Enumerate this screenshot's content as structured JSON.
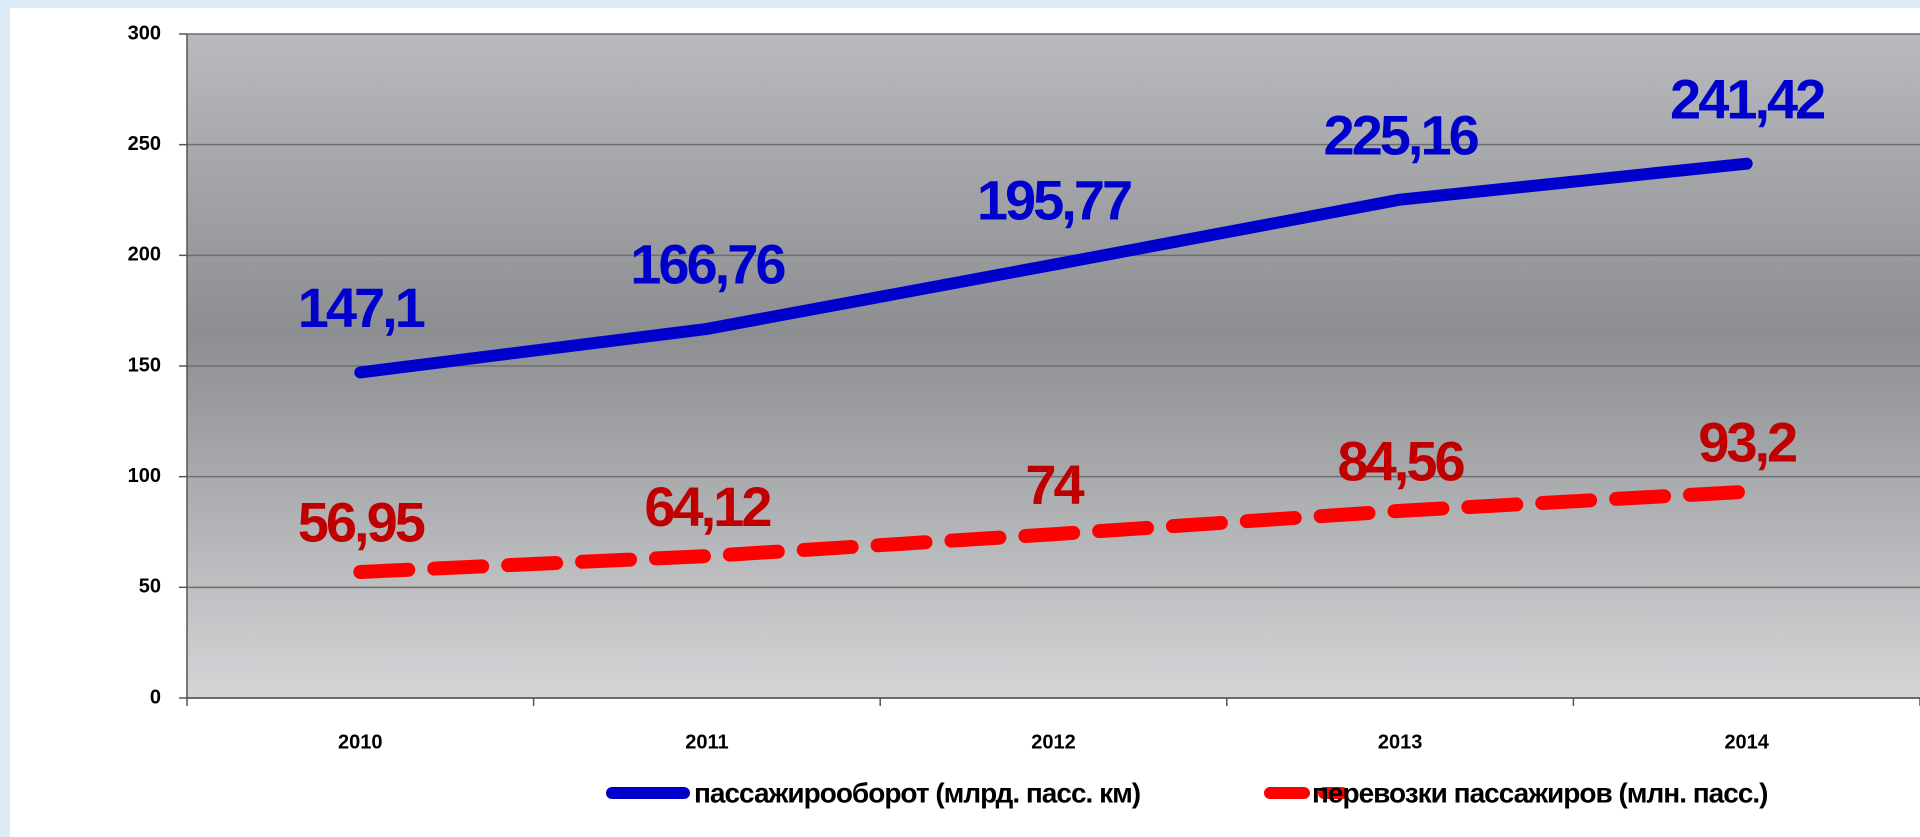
{
  "chart_data": {
    "type": "line",
    "categories": [
      "2010",
      "2011",
      "2012",
      "2013",
      "2014"
    ],
    "series": [
      {
        "name": "пассажирооборот (млрд. пасс. км)",
        "color": "#0000cc",
        "dashed": false,
        "values": [
          147.1,
          166.76,
          195.77,
          225.16,
          241.42
        ],
        "value_labels": [
          "147,1",
          "166,76",
          "195,77",
          "225,16",
          "241,42"
        ]
      },
      {
        "name": "перевозки пассажиров (млн. пасс.)",
        "color": "#ff0000",
        "dashed": true,
        "values": [
          56.95,
          64.12,
          74,
          84.56,
          93.2
        ],
        "value_labels": [
          "56,95",
          "64,12",
          "74",
          "84,56",
          "93,2"
        ]
      }
    ],
    "ylim": [
      0,
      300
    ],
    "yticks": [
      0,
      50,
      100,
      150,
      200,
      250,
      300
    ],
    "grid": true
  }
}
